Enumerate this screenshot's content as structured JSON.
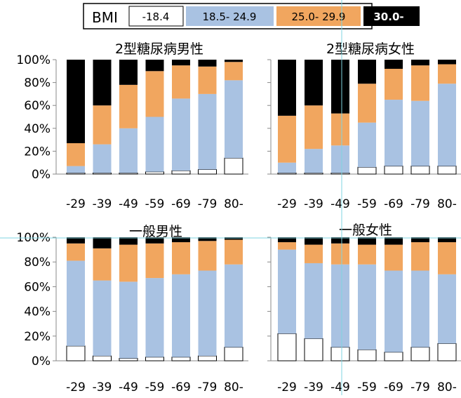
{
  "legend": {
    "title": "BMI",
    "items": [
      {
        "label": "-18.4",
        "color": "#ffffff"
      },
      {
        "label": "18.5- 24.9",
        "color": "#a9c2e2"
      },
      {
        "label": "25.0- 29.9",
        "color": "#f1a65f"
      },
      {
        "label": "30.0-",
        "color": "#000000"
      }
    ]
  },
  "chart_data": [
    {
      "type": "bar",
      "stacked": true,
      "title": "2型糖尿病男性",
      "categories": [
        "-29",
        "-39",
        "-49",
        "-59",
        "-69",
        "-79",
        "80-"
      ],
      "ylim": [
        0,
        100
      ],
      "yticks": [
        "0%",
        "20%",
        "40%",
        "60%",
        "80%",
        "100%"
      ],
      "series": [
        {
          "name": "-18.4",
          "values": [
            1,
            1,
            1,
            2,
            3,
            4,
            14
          ]
        },
        {
          "name": "18.5- 24.9",
          "values": [
            6,
            25,
            39,
            48,
            63,
            66,
            68
          ]
        },
        {
          "name": "25.0- 29.9",
          "values": [
            20,
            34,
            38,
            40,
            29,
            24,
            16
          ]
        },
        {
          "name": "30.0-",
          "values": [
            73,
            40,
            22,
            10,
            5,
            6,
            2
          ]
        }
      ]
    },
    {
      "type": "bar",
      "stacked": true,
      "title": "2型糖尿病女性",
      "categories": [
        "-29",
        "-39",
        "-49",
        "-59",
        "-69",
        "-79",
        "80-"
      ],
      "ylim": [
        0,
        100
      ],
      "yticks": [
        "0%",
        "20%",
        "40%",
        "60%",
        "80%",
        "100%"
      ],
      "series": [
        {
          "name": "-18.4",
          "values": [
            1,
            1,
            1,
            6,
            7,
            7,
            7
          ]
        },
        {
          "name": "18.5- 24.9",
          "values": [
            9,
            21,
            24,
            39,
            58,
            57,
            72
          ]
        },
        {
          "name": "25.0- 29.9",
          "values": [
            41,
            38,
            28,
            34,
            27,
            31,
            17
          ]
        },
        {
          "name": "30.0-",
          "values": [
            49,
            40,
            47,
            21,
            8,
            5,
            4
          ]
        }
      ]
    },
    {
      "type": "bar",
      "stacked": true,
      "title": "一般男性",
      "categories": [
        "-29",
        "-39",
        "-49",
        "-59",
        "-69",
        "-79",
        "80-"
      ],
      "ylim": [
        0,
        100
      ],
      "yticks": [
        "0%",
        "20%",
        "40%",
        "60%",
        "80%",
        "100%"
      ],
      "series": [
        {
          "name": "-18.4",
          "values": [
            12,
            4,
            2,
            3,
            3,
            4,
            11
          ]
        },
        {
          "name": "18.5- 24.9",
          "values": [
            69,
            61,
            62,
            64,
            67,
            69,
            67
          ]
        },
        {
          "name": "25.0- 29.9",
          "values": [
            14,
            26,
            30,
            28,
            26,
            24,
            20
          ]
        },
        {
          "name": "30.0-",
          "values": [
            5,
            9,
            6,
            5,
            4,
            3,
            2
          ]
        }
      ]
    },
    {
      "type": "bar",
      "stacked": true,
      "title": "一般女性",
      "categories": [
        "-29",
        "-39",
        "-49",
        "-59",
        "-69",
        "-79",
        "80-"
      ],
      "ylim": [
        0,
        100
      ],
      "yticks": [
        "0%",
        "20%",
        "40%",
        "60%",
        "80%",
        "100%"
      ],
      "series": [
        {
          "name": "-18.4",
          "values": [
            22,
            18,
            11,
            9,
            7,
            11,
            14
          ]
        },
        {
          "name": "18.5- 24.9",
          "values": [
            68,
            61,
            67,
            69,
            66,
            62,
            56
          ]
        },
        {
          "name": "25.0- 29.9",
          "values": [
            6,
            15,
            17,
            16,
            21,
            23,
            26
          ]
        },
        {
          "name": "30.0-",
          "values": [
            4,
            6,
            5,
            6,
            6,
            4,
            4
          ]
        }
      ]
    }
  ]
}
